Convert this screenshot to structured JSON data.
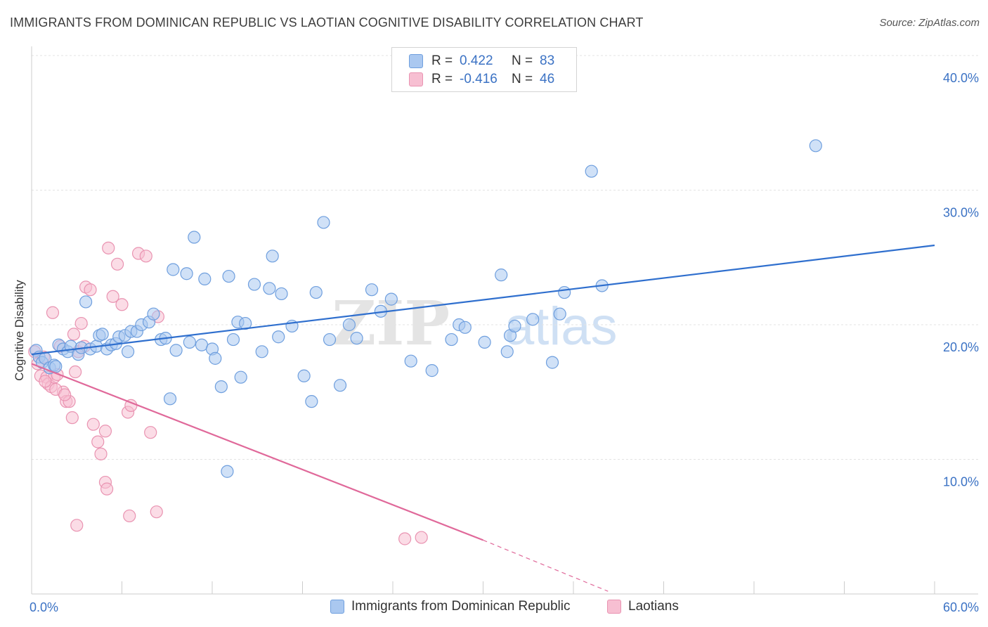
{
  "title": "IMMIGRANTS FROM DOMINICAN REPUBLIC VS LAOTIAN COGNITIVE DISABILITY CORRELATION CHART",
  "source": "Source: ZipAtlas.com",
  "watermark": {
    "zip": "ZIP",
    "atlas": "atlas"
  },
  "colors": {
    "blue_fill": "#aac8f0",
    "blue_stroke": "#6f9fde",
    "blue_line": "#2f6fce",
    "pink_fill": "#f7bfd2",
    "pink_stroke": "#e993b1",
    "pink_line": "#e0699a",
    "axis_label": "#3b72c4",
    "grid": "#e3e3e3"
  },
  "legend": {
    "rows": [
      {
        "r_label": "R =",
        "r_value": "0.422",
        "n_label": "N =",
        "n_value": "83"
      },
      {
        "r_label": "R =",
        "r_value": "-0.416",
        "n_label": "N =",
        "n_value": "46"
      }
    ]
  },
  "chart_data": {
    "type": "scatter",
    "title": "IMMIGRANTS FROM DOMINICAN REPUBLIC VS LAOTIAN COGNITIVE DISABILITY CORRELATION CHART",
    "xlabel": "",
    "ylabel": "Cognitive Disability",
    "xlim": [
      0,
      60
    ],
    "ylim": [
      0,
      40
    ],
    "x_tick_labels": [
      {
        "value": 0,
        "label": "0.0%"
      },
      {
        "value": 60,
        "label": "60.0%"
      }
    ],
    "y_tick_labels": [
      {
        "value": 10,
        "label": "10.0%"
      },
      {
        "value": 20,
        "label": "20.0%"
      },
      {
        "value": 30,
        "label": "30.0%"
      },
      {
        "value": 40,
        "label": "40.0%"
      }
    ],
    "x_minor_ticks": [
      6,
      12,
      18,
      24,
      30,
      36,
      42,
      48,
      54,
      60
    ],
    "series": [
      {
        "name": "Immigrants from Dominican Republic",
        "color": "blue",
        "points": [
          [
            0.3,
            18.1
          ],
          [
            0.5,
            17.6
          ],
          [
            0.7,
            17.2
          ],
          [
            0.9,
            17.5
          ],
          [
            1.2,
            16.8
          ],
          [
            1.5,
            17.0
          ],
          [
            1.8,
            18.5
          ],
          [
            2.1,
            18.2
          ],
          [
            2.4,
            18.0
          ],
          [
            2.6,
            18.4
          ],
          [
            3.1,
            17.8
          ],
          [
            3.3,
            18.3
          ],
          [
            3.6,
            21.7
          ],
          [
            3.9,
            18.2
          ],
          [
            4.3,
            18.4
          ],
          [
            4.5,
            19.2
          ],
          [
            4.7,
            19.3
          ],
          [
            5.0,
            18.2
          ],
          [
            5.3,
            18.5
          ],
          [
            5.6,
            18.6
          ],
          [
            5.8,
            19.1
          ],
          [
            6.2,
            19.2
          ],
          [
            6.4,
            18.0
          ],
          [
            6.6,
            19.5
          ],
          [
            7.0,
            19.5
          ],
          [
            7.3,
            20.0
          ],
          [
            7.8,
            20.2
          ],
          [
            8.1,
            20.8
          ],
          [
            8.6,
            18.9
          ],
          [
            8.9,
            19.0
          ],
          [
            9.2,
            14.5
          ],
          [
            9.4,
            24.1
          ],
          [
            9.6,
            18.1
          ],
          [
            10.3,
            23.8
          ],
          [
            10.5,
            18.7
          ],
          [
            10.8,
            26.5
          ],
          [
            11.3,
            18.5
          ],
          [
            11.5,
            23.4
          ],
          [
            12.0,
            18.2
          ],
          [
            12.2,
            17.5
          ],
          [
            12.6,
            15.4
          ],
          [
            13.1,
            23.6
          ],
          [
            13.4,
            18.9
          ],
          [
            13.7,
            20.2
          ],
          [
            13.9,
            16.1
          ],
          [
            14.2,
            20.1
          ],
          [
            14.8,
            23.0
          ],
          [
            15.3,
            18.0
          ],
          [
            15.8,
            22.7
          ],
          [
            16.0,
            25.1
          ],
          [
            16.4,
            19.1
          ],
          [
            16.6,
            22.3
          ],
          [
            17.3,
            19.9
          ],
          [
            18.1,
            16.2
          ],
          [
            18.6,
            14.3
          ],
          [
            18.9,
            22.4
          ],
          [
            19.4,
            27.6
          ],
          [
            19.8,
            18.9
          ],
          [
            20.5,
            15.5
          ],
          [
            21.1,
            20.0
          ],
          [
            21.6,
            19.0
          ],
          [
            22.6,
            22.6
          ],
          [
            23.2,
            21.0
          ],
          [
            23.9,
            21.9
          ],
          [
            25.2,
            17.3
          ],
          [
            26.6,
            16.6
          ],
          [
            27.9,
            18.9
          ],
          [
            28.4,
            20.0
          ],
          [
            28.8,
            19.8
          ],
          [
            30.1,
            18.7
          ],
          [
            31.2,
            23.7
          ],
          [
            31.6,
            18.0
          ],
          [
            31.8,
            19.2
          ],
          [
            32.1,
            19.9
          ],
          [
            33.3,
            20.4
          ],
          [
            34.6,
            17.2
          ],
          [
            35.1,
            20.8
          ],
          [
            35.4,
            22.4
          ],
          [
            37.2,
            31.4
          ],
          [
            37.9,
            22.9
          ],
          [
            13.0,
            9.1
          ],
          [
            52.1,
            33.3
          ],
          [
            1.6,
            16.9
          ]
        ],
        "trend": {
          "x": [
            0,
            60
          ],
          "y": [
            17.8,
            25.9
          ]
        }
      },
      {
        "name": "Laotians",
        "color": "pink",
        "points": [
          [
            0.2,
            18.0
          ],
          [
            0.4,
            17.1
          ],
          [
            0.6,
            16.2
          ],
          [
            0.8,
            17.6
          ],
          [
            1.0,
            16.1
          ],
          [
            1.1,
            15.6
          ],
          [
            1.3,
            15.4
          ],
          [
            1.5,
            16.1
          ],
          [
            1.7,
            16.3
          ],
          [
            1.9,
            18.4
          ],
          [
            2.1,
            15.0
          ],
          [
            2.3,
            14.3
          ],
          [
            2.5,
            14.3
          ],
          [
            2.7,
            13.1
          ],
          [
            2.9,
            16.5
          ],
          [
            3.1,
            18.0
          ],
          [
            3.3,
            20.1
          ],
          [
            3.5,
            18.4
          ],
          [
            3.6,
            22.8
          ],
          [
            3.9,
            22.6
          ],
          [
            4.1,
            12.6
          ],
          [
            4.4,
            11.3
          ],
          [
            4.6,
            10.4
          ],
          [
            4.9,
            12.1
          ],
          [
            5.1,
            25.7
          ],
          [
            5.4,
            22.1
          ],
          [
            5.7,
            24.5
          ],
          [
            6.0,
            21.5
          ],
          [
            6.4,
            13.5
          ],
          [
            6.6,
            14.0
          ],
          [
            7.1,
            25.3
          ],
          [
            7.6,
            25.1
          ],
          [
            7.9,
            12.0
          ],
          [
            8.4,
            20.6
          ],
          [
            4.9,
            8.3
          ],
          [
            5.0,
            7.8
          ],
          [
            6.5,
            5.8
          ],
          [
            8.3,
            6.1
          ],
          [
            3.0,
            5.1
          ],
          [
            24.8,
            4.1
          ],
          [
            25.9,
            4.2
          ],
          [
            1.4,
            20.9
          ],
          [
            2.8,
            19.3
          ],
          [
            0.9,
            15.8
          ],
          [
            1.6,
            15.2
          ],
          [
            2.2,
            14.8
          ]
        ],
        "trend": {
          "x": [
            0,
            30
          ],
          "y": [
            17.1,
            4.0
          ]
        },
        "trend_dashed": {
          "x": [
            30,
            38.3
          ],
          "y": [
            4.0,
            0.2
          ]
        }
      }
    ]
  },
  "legend_bottom": {
    "items": [
      {
        "label": "Immigrants from Dominican Republic"
      },
      {
        "label": "Laotians"
      }
    ]
  }
}
